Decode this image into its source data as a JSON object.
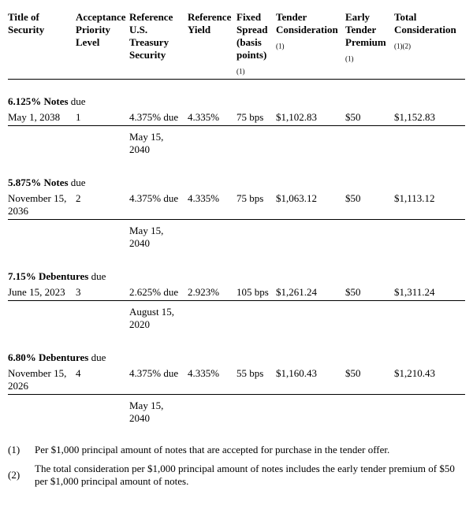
{
  "columns": {
    "c1": "Title of Security",
    "c2": "Acceptance Priority Level",
    "c3": "Reference U.S. Treasury Security",
    "c4": "Reference Yield",
    "c5": "Fixed Spread (basis points)",
    "c5_sup": "(1)",
    "c6": "Tender Consideration",
    "c6_sup": "(1)",
    "c7": "Early Tender Premium",
    "c7_sup": "(1)",
    "c8": "Total Consideration",
    "c8_sup": "(1)(2)"
  },
  "securities": [
    {
      "title_bold": "6.125% Notes",
      "title_plain": "due",
      "date": "May 1, 2038",
      "priority": "1",
      "ref_sec_line1": "4.375% due",
      "ref_sec_line2": "May 15, 2040",
      "ref_yield": "4.335%",
      "spread": "75 bps",
      "tender": "$1,102.83",
      "premium": "$50",
      "total": "$1,152.83"
    },
    {
      "title_bold": "5.875% Notes",
      "title_plain": "due",
      "date": "November 15, 2036",
      "priority": "2",
      "ref_sec_line1": "4.375% due",
      "ref_sec_line2": "May 15, 2040",
      "ref_yield": "4.335%",
      "spread": "75 bps",
      "tender": "$1,063.12",
      "premium": "$50",
      "total": "$1,113.12"
    },
    {
      "title_bold": "7.15% Debentures",
      "title_plain": "due",
      "date": "June 15, 2023",
      "priority": "3",
      "ref_sec_line1": "2.625% due",
      "ref_sec_line2": "August 15, 2020",
      "ref_yield": "2.923%",
      "spread": "105 bps",
      "tender": "$1,261.24",
      "premium": "$50",
      "total": "$1,311.24"
    },
    {
      "title_bold": "6.80% Debentures",
      "title_plain": "due",
      "date": "November 15, 2026",
      "priority": "4",
      "ref_sec_line1": "4.375% due",
      "ref_sec_line2": "May 15, 2040",
      "ref_yield": "4.335%",
      "spread": "55 bps",
      "tender": "$1,160.43",
      "premium": "$50",
      "total": "$1,210.43"
    }
  ],
  "footnotes": [
    {
      "num": "(1)",
      "text": "Per $1,000 principal amount of notes that are accepted for purchase in the tender offer."
    },
    {
      "num": "(2)",
      "text": "The total consideration per $1,000 principal amount of notes includes the early tender premium of $50 per $1,000 principal amount of notes."
    }
  ]
}
